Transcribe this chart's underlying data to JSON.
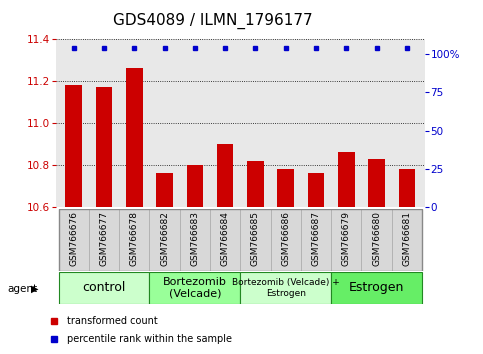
{
  "title": "GDS4089 / ILMN_1796177",
  "samples": [
    "GSM766676",
    "GSM766677",
    "GSM766678",
    "GSM766682",
    "GSM766683",
    "GSM766684",
    "GSM766685",
    "GSM766686",
    "GSM766687",
    "GSM766679",
    "GSM766680",
    "GSM766681"
  ],
  "bar_values": [
    11.18,
    11.17,
    11.26,
    10.76,
    10.8,
    10.9,
    10.82,
    10.78,
    10.76,
    10.86,
    10.83,
    10.78
  ],
  "ylim": [
    10.6,
    11.4
  ],
  "yticks": [
    10.6,
    10.8,
    11.0,
    11.2,
    11.4
  ],
  "y2ticks": [
    0,
    25,
    50,
    75,
    100
  ],
  "y2labels": [
    "0",
    "25",
    "50",
    "75",
    "100%"
  ],
  "bar_color": "#cc0000",
  "dot_color": "#0000cc",
  "groups": [
    {
      "label": "control",
      "start": 0,
      "end": 3,
      "color": "#ccffcc",
      "fontsize": 9
    },
    {
      "label": "Bortezomib\n(Velcade)",
      "start": 3,
      "end": 6,
      "color": "#99ff99",
      "fontsize": 8
    },
    {
      "label": "Bortezomib (Velcade) +\nEstrogen",
      "start": 6,
      "end": 9,
      "color": "#ccffcc",
      "fontsize": 6.5
    },
    {
      "label": "Estrogen",
      "start": 9,
      "end": 12,
      "color": "#66ee66",
      "fontsize": 9
    }
  ],
  "legend_items": [
    {
      "color": "#cc0000",
      "label": "transformed count"
    },
    {
      "color": "#0000cc",
      "label": "percentile rank within the sample"
    }
  ],
  "agent_label": "agent",
  "plot_bg": "#e8e8e8",
  "title_fontsize": 11,
  "tick_fontsize": 7.5,
  "sample_fontsize": 6.5,
  "group_border_color": "#228822"
}
